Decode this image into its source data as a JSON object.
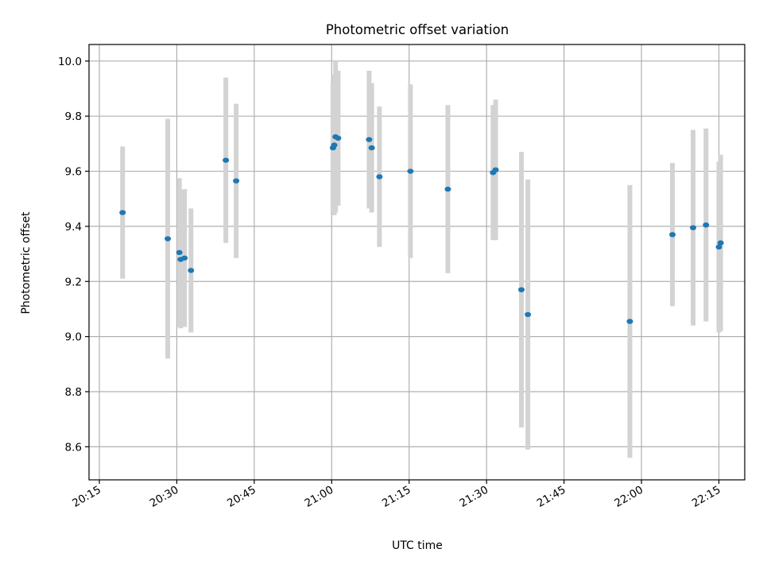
{
  "chart_data": {
    "type": "scatter",
    "title": "Photometric offset variation",
    "xlabel": "UTC time",
    "ylabel": "Photometric offset",
    "x_unit": "UTC time of day",
    "xlim": [
      "20:13",
      "22:20"
    ],
    "ylim": [
      8.48,
      10.06
    ],
    "grid": true,
    "x_ticks": [
      "20:15",
      "20:30",
      "20:45",
      "21:00",
      "21:15",
      "21:30",
      "21:45",
      "22:00",
      "22:15"
    ],
    "y_ticks": [
      "8.6",
      "8.8",
      "9.0",
      "9.2",
      "9.4",
      "9.6",
      "9.8",
      "10.0"
    ],
    "colors": {
      "points": "#1f77b4",
      "error_bars": "#d3d3d3",
      "grid": "#b0b0b0"
    },
    "series": [
      {
        "points": [
          {
            "x": "20:19:30",
            "y": 9.45,
            "err": 0.24
          },
          {
            "x": "20:28:15",
            "y": 9.355,
            "err": 0.435
          },
          {
            "x": "20:30:30",
            "y": 9.305,
            "err": 0.27
          },
          {
            "x": "20:30:45",
            "y": 9.28,
            "err": 0.25
          },
          {
            "x": "20:31:30",
            "y": 9.285,
            "err": 0.25
          },
          {
            "x": "20:32:45",
            "y": 9.24,
            "err": 0.225
          },
          {
            "x": "20:39:30",
            "y": 9.64,
            "err": 0.3
          },
          {
            "x": "20:41:30",
            "y": 9.565,
            "err": 0.28
          },
          {
            "x": "21:00:15",
            "y": 9.685,
            "err": 0.24
          },
          {
            "x": "21:00:30",
            "y": 9.695,
            "err": 0.255
          },
          {
            "x": "21:00:45",
            "y": 9.725,
            "err": 0.275
          },
          {
            "x": "21:01:15",
            "y": 9.72,
            "err": 0.245
          },
          {
            "x": "21:07:15",
            "y": 9.715,
            "err": 0.25
          },
          {
            "x": "21:07:45",
            "y": 9.685,
            "err": 0.235
          },
          {
            "x": "21:09:15",
            "y": 9.58,
            "err": 0.255
          },
          {
            "x": "21:15:15",
            "y": 9.6,
            "err": 0.315
          },
          {
            "x": "21:22:30",
            "y": 9.535,
            "err": 0.305
          },
          {
            "x": "21:31:15",
            "y": 9.595,
            "err": 0.245
          },
          {
            "x": "21:31:45",
            "y": 9.605,
            "err": 0.255
          },
          {
            "x": "21:36:45",
            "y": 9.17,
            "err": 0.5
          },
          {
            "x": "21:38:00",
            "y": 9.08,
            "err": 0.49
          },
          {
            "x": "21:57:45",
            "y": 9.055,
            "err": 0.495
          },
          {
            "x": "22:06:00",
            "y": 9.37,
            "err": 0.26
          },
          {
            "x": "22:10:00",
            "y": 9.395,
            "err": 0.355
          },
          {
            "x": "22:12:30",
            "y": 9.405,
            "err": 0.35
          },
          {
            "x": "22:15:00",
            "y": 9.325,
            "err": 0.31
          },
          {
            "x": "22:15:20",
            "y": 9.34,
            "err": 0.32
          }
        ]
      }
    ]
  }
}
